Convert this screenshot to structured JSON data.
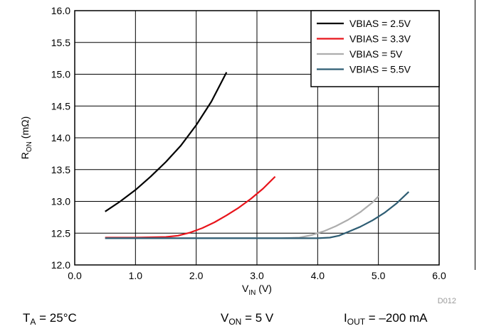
{
  "chart_data": {
    "type": "line",
    "xlabel_main": "V",
    "xlabel_sub": "IN",
    "xlabel_unit": " (V)",
    "ylabel_main": "R",
    "ylabel_sub": "ON",
    "ylabel_unit": " (mΩ)",
    "xlim": [
      0.0,
      6.0
    ],
    "ylim": [
      12.0,
      16.0
    ],
    "x_ticks": [
      "0.0",
      "1.0",
      "2.0",
      "3.0",
      "4.0",
      "5.0",
      "6.0"
    ],
    "y_ticks": [
      "12.0",
      "12.5",
      "13.0",
      "13.5",
      "14.0",
      "14.5",
      "15.0",
      "15.5",
      "16.0"
    ],
    "grid": true,
    "legend_position": "top-right",
    "series": [
      {
        "name": "VBIAS = 2.5V",
        "color": "#000000",
        "x": [
          0.5,
          0.75,
          1.0,
          1.25,
          1.5,
          1.75,
          2.0,
          2.25,
          2.5
        ],
        "y": [
          12.84,
          13.0,
          13.18,
          13.39,
          13.62,
          13.88,
          14.2,
          14.57,
          15.03
        ]
      },
      {
        "name": "VBIAS = 3.3V",
        "color": "#e8141b",
        "x": [
          0.5,
          1.0,
          1.5,
          1.7,
          1.9,
          2.1,
          2.3,
          2.5,
          2.7,
          2.9,
          3.1,
          3.3
        ],
        "y": [
          12.43,
          12.43,
          12.44,
          12.46,
          12.51,
          12.58,
          12.67,
          12.78,
          12.9,
          13.04,
          13.2,
          13.39
        ]
      },
      {
        "name": "VBIAS = 5V",
        "color": "#adadad",
        "x": [
          0.5,
          1.5,
          2.5,
          3.4,
          3.7,
          3.9,
          4.1,
          4.3,
          4.5,
          4.7,
          4.9,
          5.0
        ],
        "y": [
          12.42,
          12.42,
          12.42,
          12.42,
          12.43,
          12.47,
          12.53,
          12.61,
          12.71,
          12.83,
          12.98,
          13.08
        ]
      },
      {
        "name": "VBIAS = 5.5V",
        "color": "#2e5d73",
        "x": [
          0.5,
          1.5,
          2.5,
          3.5,
          4.0,
          4.2,
          4.35,
          4.5,
          4.7,
          4.9,
          5.1,
          5.3,
          5.5
        ],
        "y": [
          12.42,
          12.42,
          12.42,
          12.42,
          12.42,
          12.43,
          12.46,
          12.52,
          12.6,
          12.7,
          12.82,
          12.97,
          13.15
        ]
      }
    ],
    "code": "D012"
  },
  "conditions": [
    {
      "main": "T",
      "sub": "A",
      "rest": " = 25°C"
    },
    {
      "main": "V",
      "sub": "ON",
      "rest": " = 5 V"
    },
    {
      "main": "I",
      "sub": "OUT",
      "rest": " = –200 mA"
    }
  ]
}
